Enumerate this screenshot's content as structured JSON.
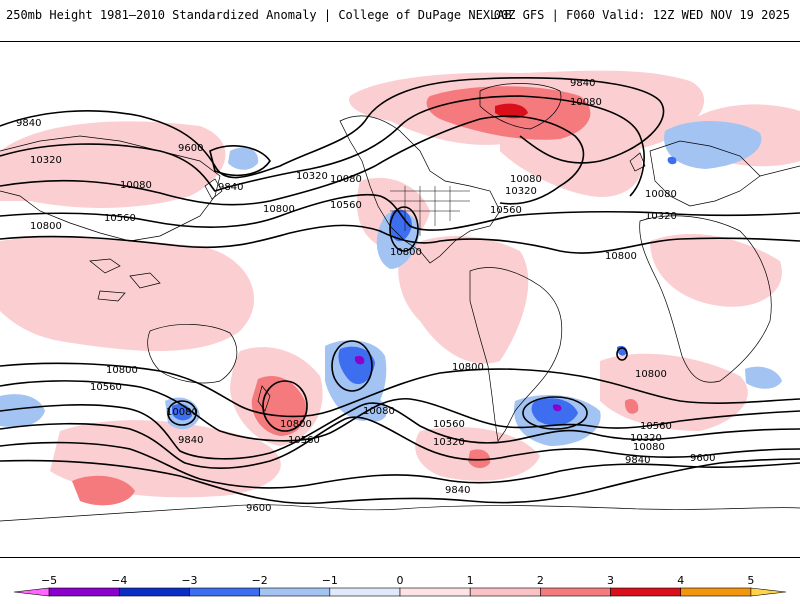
{
  "header": {
    "title": "250mb Height 1981–2010 Standardized Anomaly | College of DuPage NEXLAB",
    "run_info": "00Z GFS | F060 Valid: 12Z WED NOV 19 2025"
  },
  "map": {
    "background": "#ffffff",
    "coastline_color": "#000000",
    "contour_color": "#000000",
    "contour_labels": [
      "9840",
      "10080",
      "9600",
      "10320",
      "10080",
      "9840",
      "10560",
      "10800",
      "10320",
      "10080",
      "10560",
      "10800",
      "10800",
      "9840",
      "10080",
      "10080",
      "10320",
      "10560",
      "10320",
      "10560",
      "10800",
      "10800",
      "10800",
      "10560",
      "10320",
      "10080",
      "9840",
      "10800",
      "10800",
      "10560",
      "10080",
      "10560",
      "10320",
      "10080",
      "9840",
      "9840",
      "9600",
      "9600"
    ]
  },
  "colorbar": {
    "ticks": [
      "−5",
      "−4",
      "−3",
      "−2",
      "−1",
      "0",
      "1",
      "2",
      "3",
      "4",
      "5"
    ],
    "segments": [
      {
        "from": -5.5,
        "to": -5,
        "color": "#ff66ff"
      },
      {
        "from": -5,
        "to": -4,
        "color": "#8b00cc"
      },
      {
        "from": -4,
        "to": -3,
        "color": "#0b2fc6"
      },
      {
        "from": -3,
        "to": -2,
        "color": "#3d6ef0"
      },
      {
        "from": -2,
        "to": -1,
        "color": "#a3c4f3"
      },
      {
        "from": -1,
        "to": 0,
        "color": "#deeafb"
      },
      {
        "from": 0,
        "to": 1,
        "color": "#fde3e3"
      },
      {
        "from": 1,
        "to": 2,
        "color": "#f9c3c5"
      },
      {
        "from": 2,
        "to": 3,
        "color": "#f47a7e"
      },
      {
        "from": 3,
        "to": 4,
        "color": "#d9101c"
      },
      {
        "from": 4,
        "to": 5,
        "color": "#f3960e"
      },
      {
        "from": 5,
        "to": 5.5,
        "color": "#ffd34d"
      }
    ]
  }
}
